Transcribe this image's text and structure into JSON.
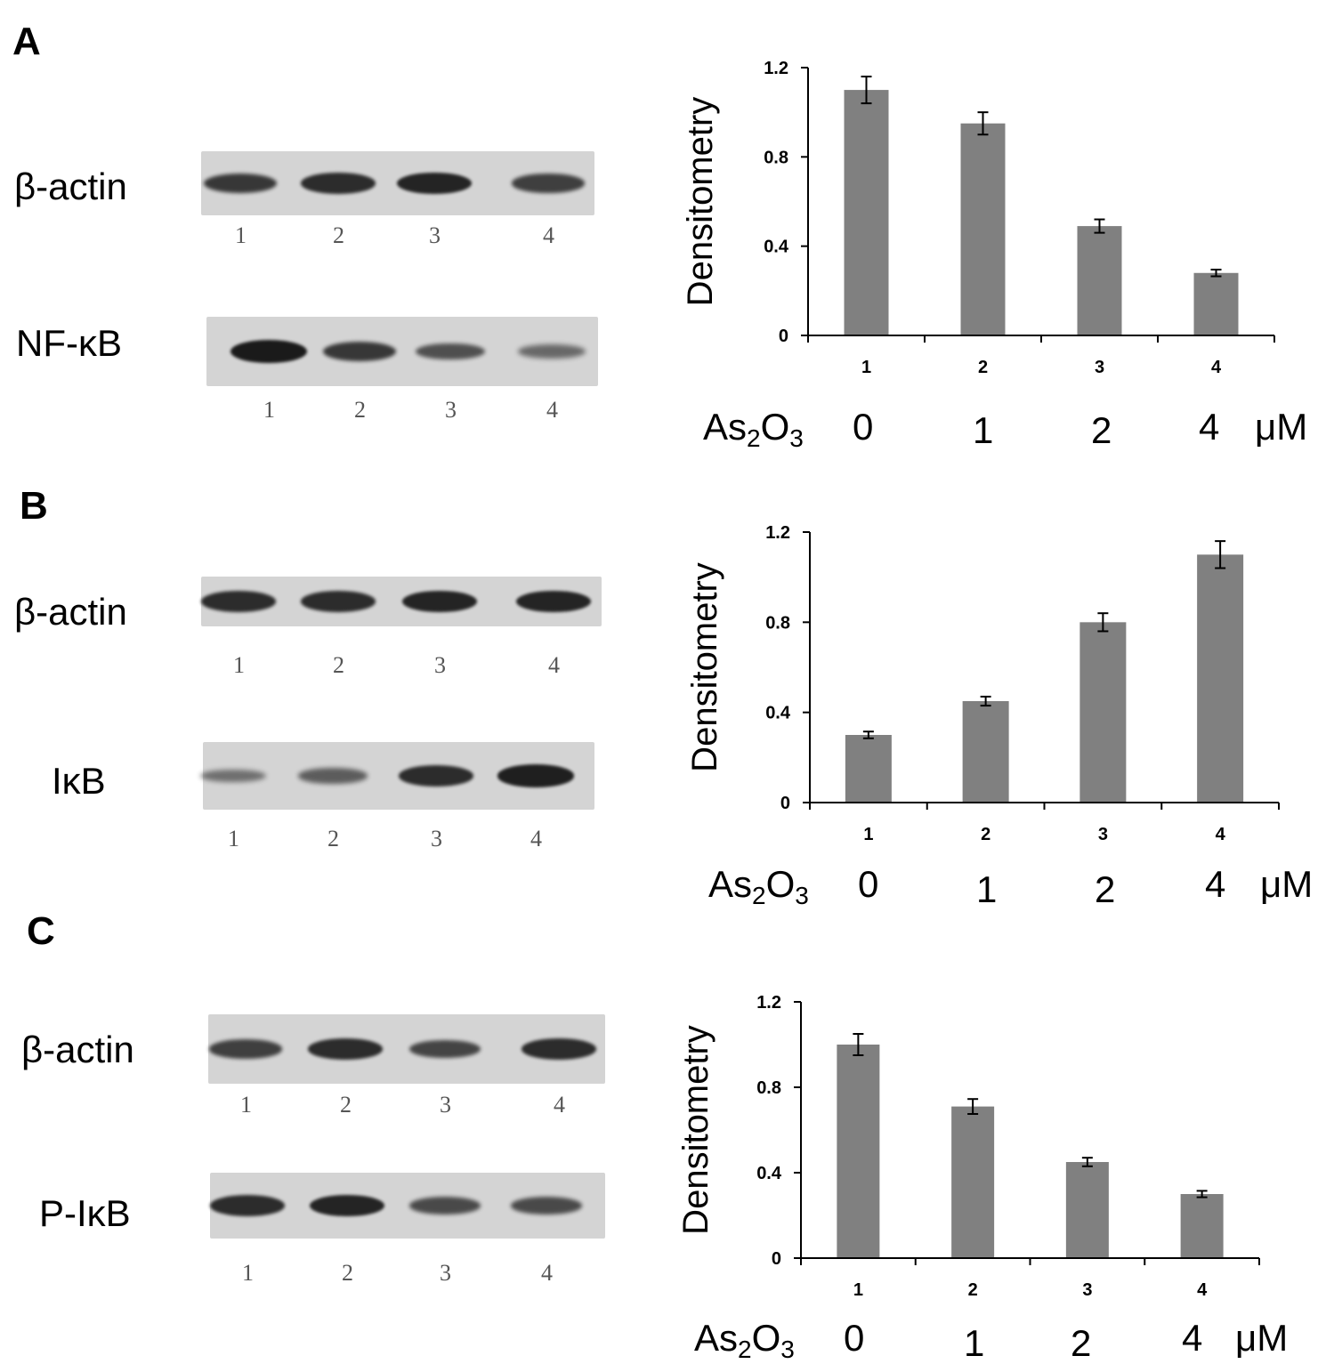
{
  "panels": [
    {
      "letter": "A",
      "blots": [
        {
          "label": "β-actin",
          "lanes": [
            "1",
            "2",
            "3",
            "4"
          ],
          "band_intensity": [
            0.75,
            0.85,
            0.9,
            0.7
          ]
        },
        {
          "label": "NF-κB",
          "lanes": [
            "1",
            "2",
            "3",
            "4"
          ],
          "band_intensity": [
            1.0,
            0.75,
            0.55,
            0.35
          ]
        }
      ],
      "dose": {
        "compound": "As",
        "sub1": "2",
        "o": "O",
        "sub2": "3",
        "values": [
          "0",
          "1",
          "2",
          "4"
        ],
        "unit": "μM"
      }
    },
    {
      "letter": "B",
      "blots": [
        {
          "label": "β-actin",
          "lanes": [
            "1",
            "2",
            "3",
            "4"
          ],
          "band_intensity": [
            0.85,
            0.85,
            0.9,
            0.9
          ]
        },
        {
          "label": "IκB",
          "lanes": [
            "1",
            "2",
            "3",
            "4"
          ],
          "band_intensity": [
            0.3,
            0.45,
            0.85,
            0.95
          ]
        }
      ],
      "dose": {
        "compound": "As",
        "sub1": "2",
        "o": "O",
        "sub2": "3",
        "values": [
          "0",
          "1",
          "2",
          "4"
        ],
        "unit": "μM"
      }
    },
    {
      "letter": "C",
      "blots": [
        {
          "label": "β-actin",
          "lanes": [
            "1",
            "2",
            "3",
            "4"
          ],
          "band_intensity": [
            0.7,
            0.85,
            0.65,
            0.85
          ]
        },
        {
          "label": "P-IκB",
          "lanes": [
            "1",
            "2",
            "3",
            "4"
          ],
          "band_intensity": [
            0.85,
            0.9,
            0.6,
            0.6
          ]
        }
      ],
      "dose": {
        "compound": "As",
        "sub1": "2",
        "o": "O",
        "sub2": "3",
        "values": [
          "0",
          "1",
          "2",
          "4"
        ],
        "unit": "μM"
      }
    }
  ],
  "colors": {
    "bar": "#808080",
    "band": "#1a1a1a",
    "blot_bg": "#d4d4d4"
  },
  "chart_data": [
    {
      "type": "bar",
      "panel": "A",
      "categories": [
        "1",
        "2",
        "3",
        "4"
      ],
      "values": [
        1.1,
        0.95,
        0.49,
        0.28
      ],
      "errors": [
        0.06,
        0.05,
        0.03,
        0.015
      ],
      "ylabel": "Densitometry",
      "ylim": [
        0,
        1.2
      ],
      "yticks": [
        "0",
        "0.4",
        "0.8",
        "1.2"
      ],
      "grid": false
    },
    {
      "type": "bar",
      "panel": "B",
      "categories": [
        "1",
        "2",
        "3",
        "4"
      ],
      "values": [
        0.3,
        0.45,
        0.8,
        1.1
      ],
      "errors": [
        0.015,
        0.02,
        0.04,
        0.06
      ],
      "ylabel": "Densitometry",
      "ylim": [
        0,
        1.2
      ],
      "yticks": [
        "0",
        "0.4",
        "0.8",
        "1.2"
      ],
      "grid": false
    },
    {
      "type": "bar",
      "panel": "C",
      "categories": [
        "1",
        "2",
        "3",
        "4"
      ],
      "values": [
        1.0,
        0.71,
        0.45,
        0.3
      ],
      "errors": [
        0.05,
        0.035,
        0.02,
        0.015
      ],
      "ylabel": "Densitometry",
      "ylim": [
        0,
        1.2
      ],
      "yticks": [
        "0",
        "0.4",
        "0.8",
        "1.2"
      ],
      "grid": false
    }
  ]
}
